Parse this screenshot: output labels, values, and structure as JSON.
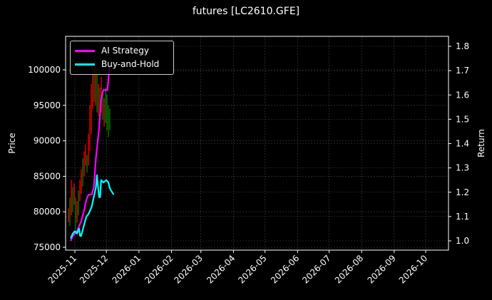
{
  "title": "futures [LC2610.GFE]",
  "legend": [
    {
      "label": "AI Strategy",
      "color": "#ff00ff"
    },
    {
      "label": "Buy-and-Hold",
      "color": "#00ffff"
    }
  ],
  "colors": {
    "background": "#000000",
    "up": "#ff0000",
    "down": "#008000",
    "grid": "#444444",
    "axis": "#ffffff"
  },
  "chart_data": {
    "type": "line",
    "title": "futures [LC2610.GFE]",
    "xlabel": "",
    "ylabel": "Price",
    "y2label": "Return",
    "x_ticks": [
      "2025-11",
      "2025-12",
      "2026-01",
      "2026-02",
      "2026-03",
      "2026-04",
      "2026-05",
      "2026-06",
      "2026-07",
      "2026-08",
      "2026-09",
      "2026-10"
    ],
    "y_ticks": [
      75000,
      80000,
      85000,
      90000,
      95000,
      100000
    ],
    "y2_ticks": [
      1.0,
      1.1,
      1.2,
      1.3,
      1.4,
      1.5,
      1.6,
      1.7,
      1.8
    ],
    "ylim": [
      74600,
      104700
    ],
    "y2lim": [
      0.96,
      1.84
    ],
    "grid": true,
    "legend_position": "upper left",
    "candles_note": "Daily OHLC candlesticks (red=up, green=down) from ~2025-10-28 to ~2025-12-08",
    "series": [
      {
        "name": "AI Strategy",
        "axis": "return",
        "x": [
          "2025-10-28",
          "2025-10-30",
          "2025-11-03",
          "2025-11-05",
          "2025-11-07",
          "2025-11-10",
          "2025-11-12",
          "2025-11-14",
          "2025-11-17",
          "2025-11-19",
          "2025-11-21",
          "2025-11-24",
          "2025-11-26",
          "2025-11-28",
          "2025-12-01",
          "2025-12-02",
          "2025-12-04"
        ],
        "values": [
          1.0,
          1.02,
          1.04,
          1.06,
          1.08,
          1.13,
          1.17,
          1.19,
          1.19,
          1.22,
          1.34,
          1.46,
          1.58,
          1.62,
          1.62,
          1.62,
          1.72
        ]
      },
      {
        "name": "Buy-and-Hold",
        "axis": "return",
        "x": [
          "2025-10-28",
          "2025-10-30",
          "2025-11-01",
          "2025-11-03",
          "2025-11-05",
          "2025-11-06",
          "2025-11-07",
          "2025-11-10",
          "2025-11-12",
          "2025-11-14",
          "2025-11-17",
          "2025-11-19",
          "2025-11-21",
          "2025-11-22",
          "2025-11-24",
          "2025-11-25",
          "2025-11-26",
          "2025-11-28",
          "2025-12-01",
          "2025-12-03",
          "2025-12-04",
          "2025-12-05",
          "2025-12-08"
        ],
        "values": [
          1.01,
          1.03,
          1.04,
          1.03,
          1.05,
          1.02,
          1.02,
          1.07,
          1.1,
          1.11,
          1.14,
          1.18,
          1.22,
          1.27,
          1.18,
          1.18,
          1.25,
          1.24,
          1.25,
          1.24,
          1.22,
          1.21,
          1.19
        ]
      }
    ]
  }
}
